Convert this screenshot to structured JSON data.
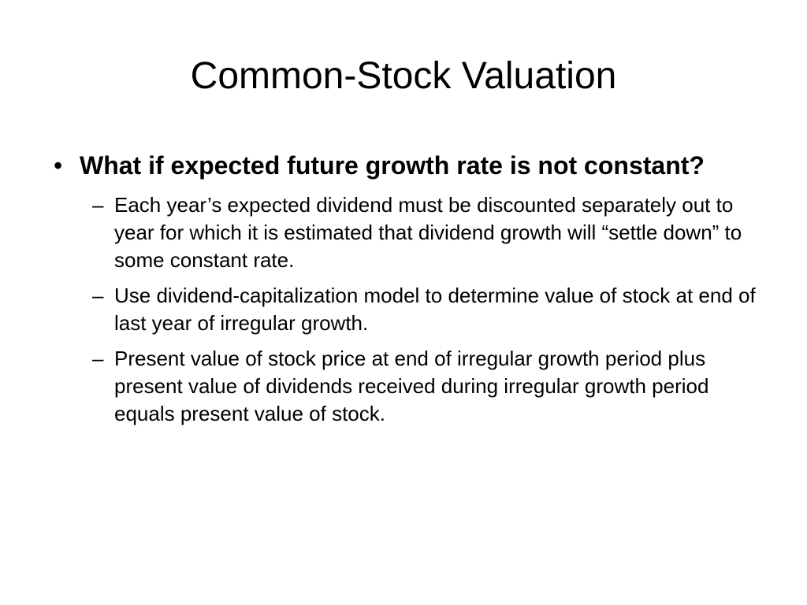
{
  "slide": {
    "title": "Common-Stock Valuation",
    "bullet_symbol": "•",
    "dash_symbol": "–",
    "points": [
      {
        "text": "What if expected future growth rate is not constant?",
        "subpoints": [
          "Each year’s expected dividend must be discounted separately out to year for which it is estimated that dividend growth will “settle down” to some constant rate.",
          "Use dividend-capitalization model to determine value of stock at end of last year of irregular growth.",
          "Present value of stock price at end of irregular growth period plus present value of dividends received during irregular growth period equals present value of stock."
        ]
      }
    ]
  }
}
